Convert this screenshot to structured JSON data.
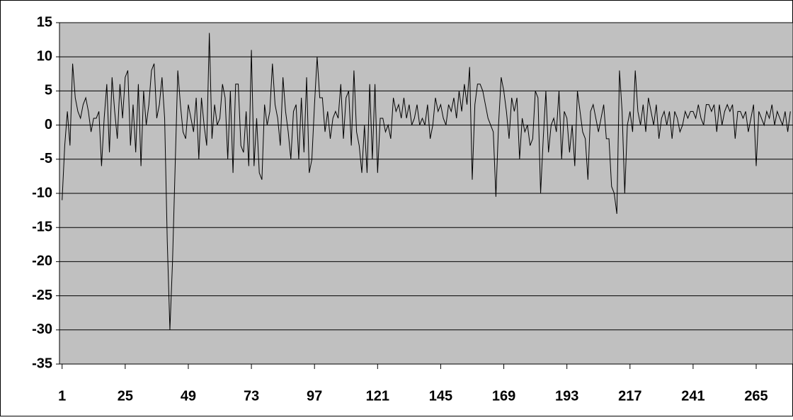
{
  "chart_data": {
    "type": "line",
    "x": [
      1,
      2,
      3,
      4,
      5,
      6,
      7,
      8,
      9,
      10,
      11,
      12,
      13,
      14,
      15,
      16,
      17,
      18,
      19,
      20,
      21,
      22,
      23,
      24,
      25,
      26,
      27,
      28,
      29,
      30,
      31,
      32,
      33,
      34,
      35,
      36,
      37,
      38,
      39,
      40,
      41,
      42,
      43,
      44,
      45,
      46,
      47,
      48,
      49,
      50,
      51,
      52,
      53,
      54,
      55,
      56,
      57,
      58,
      59,
      60,
      61,
      62,
      63,
      64,
      65,
      66,
      67,
      68,
      69,
      70,
      71,
      72,
      73,
      74,
      75,
      76,
      77,
      78,
      79,
      80,
      81,
      82,
      83,
      84,
      85,
      86,
      87,
      88,
      89,
      90,
      91,
      92,
      93,
      94,
      95,
      96,
      97,
      98,
      99,
      100,
      101,
      102,
      103,
      104,
      105,
      106,
      107,
      108,
      109,
      110,
      111,
      112,
      113,
      114,
      115,
      116,
      117,
      118,
      119,
      120,
      121,
      122,
      123,
      124,
      125,
      126,
      127,
      128,
      129,
      130,
      131,
      132,
      133,
      134,
      135,
      136,
      137,
      138,
      139,
      140,
      141,
      142,
      143,
      144,
      145,
      146,
      147,
      148,
      149,
      150,
      151,
      152,
      153,
      154,
      155,
      156,
      157,
      158,
      159,
      160,
      161,
      162,
      163,
      164,
      165,
      166,
      167,
      168,
      169,
      170,
      171,
      172,
      173,
      174,
      175,
      176,
      177,
      178,
      179,
      180,
      181,
      182,
      183,
      184,
      185,
      186,
      187,
      188,
      189,
      190,
      191,
      192,
      193,
      194,
      195,
      196,
      197,
      198,
      199,
      200,
      201,
      202,
      203,
      204,
      205,
      206,
      207,
      208,
      209,
      210,
      211,
      212,
      213,
      214,
      215,
      216,
      217,
      218,
      219,
      220,
      221,
      222,
      223,
      224,
      225,
      226,
      227,
      228,
      229,
      230,
      231,
      232,
      233,
      234,
      235,
      236,
      237,
      238,
      239,
      240,
      241,
      242,
      243,
      244,
      245,
      246,
      247,
      248,
      249,
      250,
      251,
      252,
      253,
      254,
      255,
      256,
      257,
      258,
      259,
      260,
      261,
      262,
      263,
      264,
      265,
      266,
      267,
      268,
      269,
      270,
      271,
      272,
      273,
      274,
      275,
      276,
      277,
      278
    ],
    "series": [
      {
        "color": "#000000",
        "values": [
          -11,
          -3,
          2,
          -3,
          9,
          4,
          2,
          1,
          3,
          4,
          2,
          -1,
          1,
          1,
          2,
          -6,
          1,
          6,
          -4,
          7,
          2,
          -2,
          6,
          1,
          7,
          8,
          -3,
          3,
          -4,
          6,
          -6,
          5,
          0,
          3,
          8,
          9,
          1,
          3,
          7,
          1,
          -17,
          -30,
          -20,
          -6,
          8,
          3,
          -1,
          -2,
          3,
          1,
          -1,
          4,
          -5,
          4,
          0,
          -3,
          13.5,
          -2,
          3,
          0,
          1,
          6,
          4,
          -5,
          5,
          -7,
          6,
          6,
          -3,
          -4,
          2,
          -6,
          11,
          -6,
          1,
          -7,
          -8,
          3,
          0,
          2,
          9,
          3,
          1,
          -3,
          7,
          2,
          -1,
          -5,
          2,
          3,
          -5,
          4,
          -4,
          7,
          -7,
          -5,
          3,
          10,
          4,
          4,
          -1,
          2,
          -2,
          1,
          2,
          1,
          6,
          -2,
          4,
          5,
          -3,
          8,
          -1,
          -3,
          -7,
          0,
          -7,
          6,
          -5,
          6,
          -7,
          1,
          1,
          -1,
          0,
          -2,
          4,
          2,
          3,
          1,
          4,
          1,
          3,
          0,
          1,
          3,
          0,
          1,
          0,
          3,
          -2,
          0,
          4,
          2,
          3,
          1,
          0,
          3,
          2,
          4,
          1,
          5,
          2,
          6,
          3,
          8.5,
          -8,
          3,
          6,
          6,
          5,
          3,
          1,
          0,
          -1,
          -10.5,
          0,
          7,
          5,
          2,
          -2,
          4,
          2,
          4,
          -5,
          1,
          -1,
          0,
          -3,
          -2,
          5,
          4,
          -10,
          -2,
          5,
          -4,
          0,
          1,
          -1,
          5,
          -5,
          2,
          1,
          -4,
          0,
          -6,
          5,
          2,
          -1,
          -2,
          -8,
          2,
          3,
          1,
          -1,
          1,
          3,
          -2,
          -2,
          -9,
          -10,
          -13,
          8,
          2,
          -10,
          0,
          2,
          -1,
          8,
          2,
          0,
          3,
          -1,
          4,
          2,
          0,
          3,
          -2,
          1,
          2,
          0,
          2,
          -2,
          2,
          1,
          -1,
          0,
          2,
          1,
          2,
          2,
          1,
          3,
          1,
          0,
          3,
          3,
          2,
          3,
          -1,
          3,
          0,
          2,
          3,
          2,
          3,
          -2,
          2,
          2,
          1,
          2,
          -1,
          1,
          3,
          -6,
          2,
          1,
          0,
          2,
          1,
          3,
          0,
          2,
          1,
          0,
          2,
          -1,
          2
        ]
      }
    ],
    "xlim": [
      0,
      279
    ],
    "xticks": [
      1,
      25,
      49,
      73,
      97,
      121,
      145,
      169,
      193,
      217,
      241,
      265
    ],
    "ylim": [
      -35,
      15
    ],
    "yticks": [
      -35,
      -30,
      -25,
      -20,
      -15,
      -10,
      -5,
      0,
      5,
      10,
      15
    ],
    "grid": true,
    "plot_background": "#c0c0c0"
  }
}
